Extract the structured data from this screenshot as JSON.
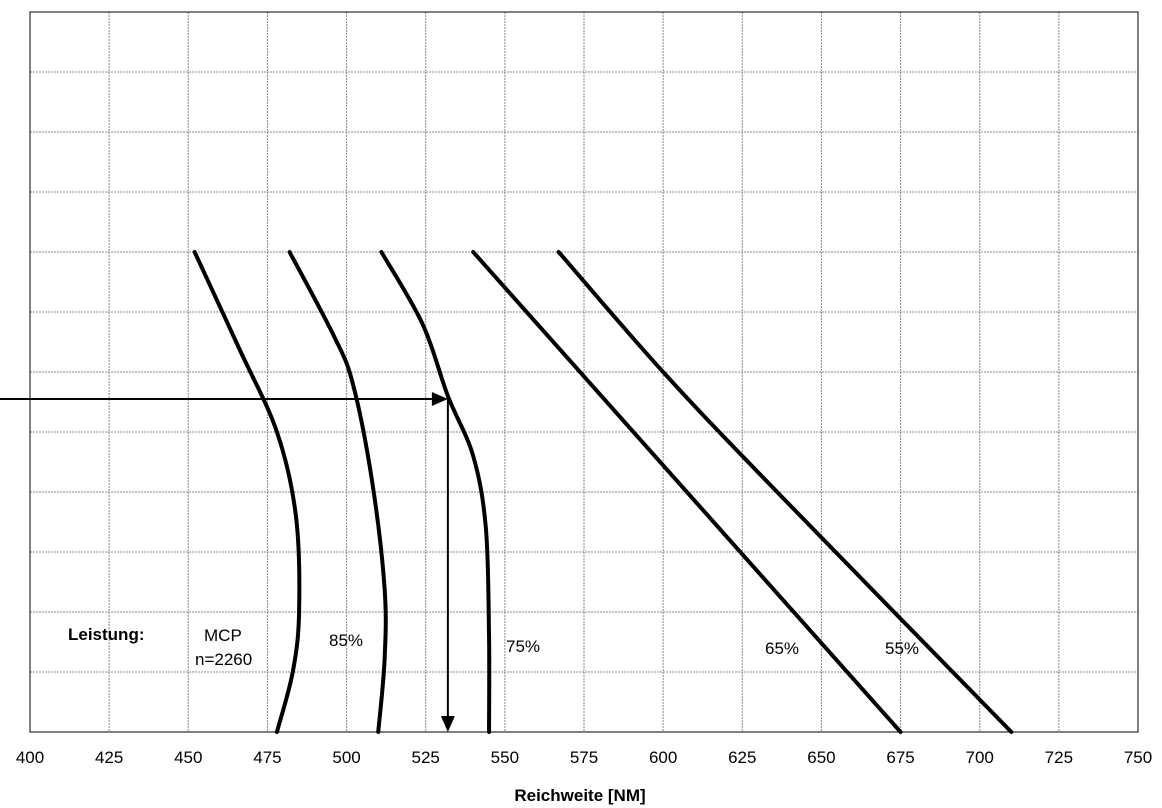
{
  "chart_data": {
    "type": "line",
    "xlabel": "Reichweite [NM]",
    "ylabel": "",
    "xlim": [
      400,
      750
    ],
    "xticks": [
      "400",
      "425",
      "450",
      "475",
      "500",
      "525",
      "550",
      "575",
      "600",
      "625",
      "650",
      "675",
      "700",
      "725",
      "750"
    ],
    "y_grid_count": 12,
    "ylim": [
      0,
      12
    ],
    "grid": true,
    "legend_title": "Leistung:",
    "series": [
      {
        "name": "MCP",
        "subname": "n=2260",
        "points": [
          [
            452,
            8
          ],
          [
            466,
            6.4
          ],
          [
            478,
            5
          ],
          [
            484,
            3.6
          ],
          [
            485,
            2
          ],
          [
            483,
            1
          ],
          [
            478,
            0
          ]
        ]
      },
      {
        "name": "85%",
        "points": [
          [
            482,
            8
          ],
          [
            496,
            6.6
          ],
          [
            502,
            5.8
          ],
          [
            508,
            4.2
          ],
          [
            512,
            2.4
          ],
          [
            512,
            1.2
          ],
          [
            510,
            0
          ]
        ]
      },
      {
        "name": "75%",
        "points": [
          [
            511,
            8
          ],
          [
            524,
            6.8
          ],
          [
            532,
            5.6
          ],
          [
            540,
            4.6
          ],
          [
            544,
            3.4
          ],
          [
            545,
            1.6
          ],
          [
            545,
            0
          ]
        ]
      },
      {
        "name": "65%",
        "points": [
          [
            540,
            8
          ],
          [
            675,
            0
          ]
        ]
      },
      {
        "name": "55%",
        "points": [
          [
            567,
            8
          ],
          [
            600,
            6
          ],
          [
            636,
            4
          ],
          [
            710,
            0
          ]
        ]
      }
    ],
    "annotation": {
      "arrow_y": 5.55,
      "arrow_x": 532,
      "arrow_from_x": 400,
      "arrow_to_y": 0
    }
  }
}
